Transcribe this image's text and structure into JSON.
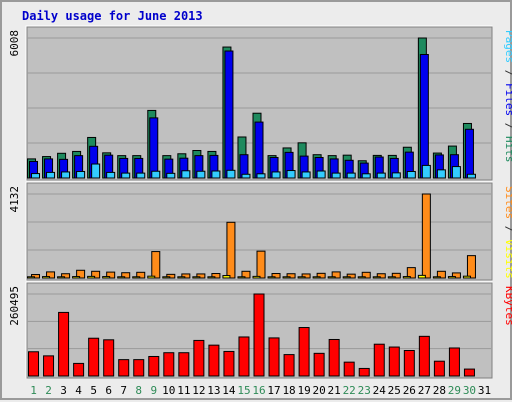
{
  "title": "Daily usage for June 2013",
  "colors": {
    "hits": "#1e8a5e",
    "files": "#0000ee",
    "pages": "#33ccff",
    "visits": "#ffff00",
    "sites": "#ff8c1a",
    "kbytes": "#ff0000",
    "plot_bg": "#c0c0c0",
    "weekend_label": "#2e8b57",
    "weekday_label": "#000000"
  },
  "x_labels": [
    "1",
    "2",
    "3",
    "4",
    "5",
    "6",
    "7",
    "8",
    "9",
    "10",
    "11",
    "12",
    "13",
    "14",
    "15",
    "16",
    "17",
    "18",
    "19",
    "20",
    "21",
    "22",
    "23",
    "24",
    "25",
    "26",
    "27",
    "28",
    "29",
    "30",
    "31"
  ],
  "weekend_days": [
    1,
    2,
    8,
    9,
    15,
    16,
    22,
    23,
    29,
    30
  ],
  "chart_data": [
    {
      "type": "bar",
      "panel": "top",
      "y_tick": "6008",
      "ylim": [
        0,
        6008
      ],
      "legend_parts": [
        {
          "text": "Pages",
          "color": "#33ccff"
        },
        {
          "text": " / ",
          "color": "#333333"
        },
        {
          "text": "Files",
          "color": "#0000ee"
        },
        {
          "text": " / ",
          "color": "#333333"
        },
        {
          "text": "Hits",
          "color": "#1e8a5e"
        }
      ],
      "categories": [
        "1",
        "2",
        "3",
        "4",
        "5",
        "6",
        "7",
        "8",
        "9",
        "10",
        "11",
        "12",
        "13",
        "14",
        "15",
        "16",
        "17",
        "18",
        "19",
        "20",
        "21",
        "22",
        "23",
        "24",
        "25",
        "26",
        "27",
        "28",
        "29",
        "30",
        "31"
      ],
      "series": [
        {
          "name": "Hits",
          "values": [
            820,
            920,
            1060,
            1140,
            1740,
            1080,
            960,
            960,
            2900,
            960,
            1040,
            1180,
            1140,
            5620,
            1760,
            2780,
            960,
            1290,
            1510,
            1000,
            960,
            980,
            740,
            970,
            970,
            1320,
            6008,
            1070,
            1370,
            2340,
            0
          ]
        },
        {
          "name": "Files",
          "values": [
            710,
            820,
            800,
            960,
            1360,
            980,
            840,
            840,
            2580,
            810,
            850,
            960,
            970,
            5450,
            1000,
            2400,
            880,
            1100,
            940,
            880,
            820,
            760,
            640,
            900,
            840,
            1110,
            5300,
            990,
            1000,
            2090,
            0
          ]
        },
        {
          "name": "Pages",
          "values": [
            190,
            240,
            260,
            280,
            600,
            240,
            210,
            210,
            290,
            200,
            310,
            290,
            300,
            330,
            160,
            180,
            260,
            320,
            260,
            300,
            210,
            210,
            180,
            210,
            220,
            280,
            540,
            350,
            490,
            160,
            0
          ]
        }
      ]
    },
    {
      "type": "bar",
      "panel": "middle",
      "y_tick": "4132",
      "ylim": [
        0,
        4132
      ],
      "legend_parts": [
        {
          "text": "Sites",
          "color": "#ff8c1a"
        },
        {
          "text": " / ",
          "color": "#333333"
        },
        {
          "text": "Visits",
          "color": "#ffff00"
        }
      ],
      "categories": [
        "1",
        "2",
        "3",
        "4",
        "5",
        "6",
        "7",
        "8",
        "9",
        "10",
        "11",
        "12",
        "13",
        "14",
        "15",
        "16",
        "17",
        "18",
        "19",
        "20",
        "21",
        "22",
        "23",
        "24",
        "25",
        "26",
        "27",
        "28",
        "29",
        "30",
        "31"
      ],
      "series": [
        {
          "name": "Visits",
          "values": [
            60,
            70,
            60,
            70,
            80,
            70,
            60,
            60,
            90,
            60,
            60,
            60,
            60,
            120,
            60,
            80,
            60,
            60,
            60,
            60,
            60,
            60,
            60,
            60,
            60,
            70,
            130,
            60,
            70,
            90,
            0
          ]
        },
        {
          "name": "Sites",
          "values": [
            170,
            300,
            210,
            380,
            330,
            290,
            260,
            280,
            1300,
            180,
            200,
            200,
            220,
            2740,
            330,
            1320,
            220,
            210,
            200,
            230,
            300,
            190,
            280,
            210,
            230,
            510,
            4132,
            330,
            250,
            1100,
            0
          ]
        }
      ]
    },
    {
      "type": "bar",
      "panel": "bottom",
      "y_tick": "260495",
      "ylim": [
        0,
        260495
      ],
      "legend_parts": [
        {
          "text": "KBytes",
          "color": "#ff0000"
        }
      ],
      "categories": [
        "1",
        "2",
        "3",
        "4",
        "5",
        "6",
        "7",
        "8",
        "9",
        "10",
        "11",
        "12",
        "13",
        "14",
        "15",
        "16",
        "17",
        "18",
        "19",
        "20",
        "21",
        "22",
        "23",
        "24",
        "25",
        "26",
        "27",
        "28",
        "29",
        "30",
        "31"
      ],
      "series": [
        {
          "name": "KBytes",
          "values": [
            77000,
            64000,
            202000,
            40000,
            120000,
            115000,
            52000,
            52000,
            62000,
            74000,
            74000,
            113000,
            98000,
            78000,
            124000,
            260495,
            121000,
            68000,
            154000,
            72000,
            116000,
            44000,
            24000,
            101000,
            92000,
            81000,
            126000,
            47000,
            89000,
            22000,
            0
          ]
        }
      ]
    }
  ]
}
